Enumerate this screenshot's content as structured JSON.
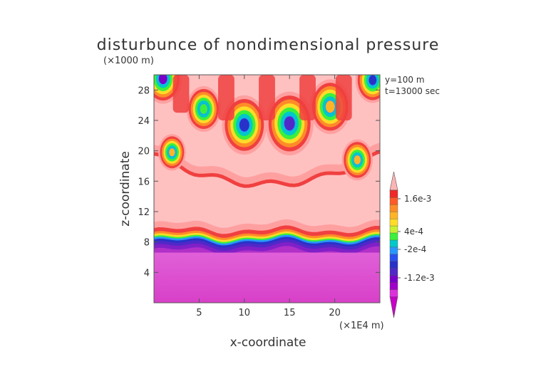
{
  "chart_data": {
    "type": "heatmap",
    "title": "disturbunce of nondimensional pressure",
    "xlabel": "x-coordinate",
    "ylabel": "z-coordinate",
    "x_unit": "(×1E4 m)",
    "y_unit": "(×1000 m)",
    "annotations": [
      "y=100 m",
      "t=13000 sec"
    ],
    "xlim": [
      0,
      25
    ],
    "ylim": [
      0,
      30
    ],
    "xticks": [
      5,
      10,
      15,
      20
    ],
    "yticks": [
      4,
      8,
      12,
      16,
      20,
      24,
      28
    ],
    "colorbar": {
      "labels": [
        "1.6e-3",
        "4e-4",
        "-2e-4",
        "-1.2e-3"
      ],
      "colors": [
        "#c800c8",
        "#dc32dc",
        "#a000c8",
        "#7800c8",
        "#5028c8",
        "#2832c8",
        "#2850f0",
        "#2896ff",
        "#00c8c8",
        "#3cf03c",
        "#c8f032",
        "#ffdc28",
        "#ffb428",
        "#ff8c28",
        "#ff5a28",
        "#f02828",
        "#ffb4b4"
      ]
    },
    "field": {
      "background_upper": "#ffc0c0",
      "background_lower": "#d83ccc",
      "interface_height": 8.2,
      "blobs": [
        {
          "x": 10.0,
          "z": 23.4,
          "r": 1.3,
          "min": "#2832c8"
        },
        {
          "x": 15.0,
          "z": 23.6,
          "r": 1.4,
          "min": "#5028c8"
        },
        {
          "x": 5.5,
          "z": 25.5,
          "r": 1.0,
          "min": "#3cf03c"
        },
        {
          "x": 19.5,
          "z": 25.8,
          "r": 1.2,
          "min": "#ffb428"
        },
        {
          "x": 1.0,
          "z": 29.5,
          "r": 1.1,
          "min": "#7800c8"
        },
        {
          "x": 24.2,
          "z": 29.3,
          "r": 1.0,
          "min": "#2832c8"
        },
        {
          "x": 2.0,
          "z": 19.8,
          "r": 0.8,
          "min": "#ffb428"
        },
        {
          "x": 22.5,
          "z": 18.8,
          "r": 0.9,
          "min": "#ffb428"
        }
      ]
    }
  }
}
